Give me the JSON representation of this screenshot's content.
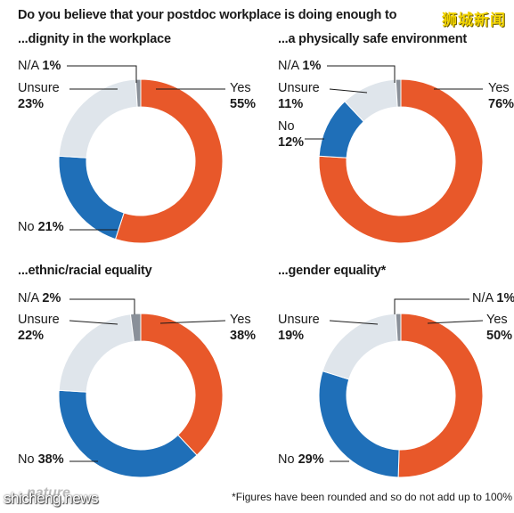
{
  "header": {
    "title": "Do you believe that your postdoc workplace is doing enough to",
    "watermark_top": "狮城新闻"
  },
  "colors": {
    "yes": "#e8582a",
    "no": "#1f6fb8",
    "unsure": "#dfe5eb",
    "na": "#8a9099",
    "leader": "#1a1a1a"
  },
  "chart_data": [
    {
      "type": "pie",
      "subtitle": "...dignity in the workplace",
      "categories": [
        "Yes",
        "No",
        "Unsure",
        "N/A"
      ],
      "values": [
        55,
        21,
        23,
        1
      ],
      "labels": {
        "yes": {
          "name": "Yes",
          "pct": "55%"
        },
        "no": {
          "name": "No",
          "pct": "21%"
        },
        "unsure": {
          "name": "Unsure",
          "pct": "23%"
        },
        "na": {
          "name": "N/A",
          "pct": "1%"
        }
      }
    },
    {
      "type": "pie",
      "subtitle": "...a physically safe environment",
      "categories": [
        "Yes",
        "No",
        "Unsure",
        "N/A"
      ],
      "values": [
        76,
        12,
        11,
        1
      ],
      "labels": {
        "yes": {
          "name": "Yes",
          "pct": "76%"
        },
        "no": {
          "name": "No",
          "pct": "12%"
        },
        "unsure": {
          "name": "Unsure",
          "pct": "11%"
        },
        "na": {
          "name": "N/A",
          "pct": "1%"
        }
      }
    },
    {
      "type": "pie",
      "subtitle": "...ethnic/racial equality",
      "categories": [
        "Yes",
        "No",
        "Unsure",
        "N/A"
      ],
      "values": [
        38,
        38,
        22,
        2
      ],
      "labels": {
        "yes": {
          "name": "Yes",
          "pct": "38%"
        },
        "no": {
          "name": "No",
          "pct": "38%"
        },
        "unsure": {
          "name": "Unsure",
          "pct": "22%"
        },
        "na": {
          "name": "N/A",
          "pct": "2%"
        }
      }
    },
    {
      "type": "pie",
      "subtitle": "...gender equality*",
      "categories": [
        "Yes",
        "No",
        "Unsure",
        "N/A"
      ],
      "values": [
        50,
        29,
        19,
        1
      ],
      "labels": {
        "yes": {
          "name": "Yes",
          "pct": "50%"
        },
        "no": {
          "name": "No",
          "pct": "29%"
        },
        "unsure": {
          "name": "Unsure",
          "pct": "19%"
        },
        "na": {
          "name": "N/A",
          "pct": "1%"
        }
      }
    }
  ],
  "footer": {
    "footnote": "*Figures have been rounded and so do not add up to 100%",
    "logo": "nature",
    "watermark_bottom": "shicheng.news"
  }
}
